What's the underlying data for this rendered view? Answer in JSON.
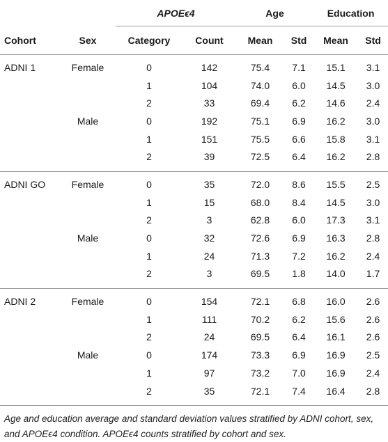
{
  "header": {
    "cohort": "Cohort",
    "sex": "Sex",
    "apoe_group": "APOEϵ4",
    "age_group": "Age",
    "education_group": "Education",
    "category": "Category",
    "count": "Count",
    "age_mean": "Mean",
    "age_std": "Std",
    "edu_mean": "Mean",
    "edu_std": "Std"
  },
  "rows": [
    {
      "cohort": "ADNI 1",
      "sex": "Female",
      "cat": "0",
      "count": "142",
      "age_mean": "75.4",
      "age_std": "7.1",
      "edu_mean": "15.1",
      "edu_std": "3.1"
    },
    {
      "cohort": "",
      "sex": "",
      "cat": "1",
      "count": "104",
      "age_mean": "74.0",
      "age_std": "6.0",
      "edu_mean": "14.5",
      "edu_std": "3.0"
    },
    {
      "cohort": "",
      "sex": "",
      "cat": "2",
      "count": "33",
      "age_mean": "69.4",
      "age_std": "6.2",
      "edu_mean": "14.6",
      "edu_std": "2.4"
    },
    {
      "cohort": "",
      "sex": "Male",
      "cat": "0",
      "count": "192",
      "age_mean": "75.1",
      "age_std": "6.9",
      "edu_mean": "16.2",
      "edu_std": "3.0"
    },
    {
      "cohort": "",
      "sex": "",
      "cat": "1",
      "count": "151",
      "age_mean": "75.5",
      "age_std": "6.6",
      "edu_mean": "15.8",
      "edu_std": "3.1"
    },
    {
      "cohort": "",
      "sex": "",
      "cat": "2",
      "count": "39",
      "age_mean": "72.5",
      "age_std": "6.4",
      "edu_mean": "16.2",
      "edu_std": "2.8"
    },
    {
      "cohort": "ADNI GO",
      "sex": "Female",
      "cat": "0",
      "count": "35",
      "age_mean": "72.0",
      "age_std": "8.6",
      "edu_mean": "15.5",
      "edu_std": "2.5"
    },
    {
      "cohort": "",
      "sex": "",
      "cat": "1",
      "count": "15",
      "age_mean": "68.0",
      "age_std": "8.4",
      "edu_mean": "14.5",
      "edu_std": "3.0"
    },
    {
      "cohort": "",
      "sex": "",
      "cat": "2",
      "count": "3",
      "age_mean": "62.8",
      "age_std": "6.0",
      "edu_mean": "17.3",
      "edu_std": "3.1"
    },
    {
      "cohort": "",
      "sex": "Male",
      "cat": "0",
      "count": "32",
      "age_mean": "72.6",
      "age_std": "6.9",
      "edu_mean": "16.3",
      "edu_std": "2.8"
    },
    {
      "cohort": "",
      "sex": "",
      "cat": "1",
      "count": "24",
      "age_mean": "71.3",
      "age_std": "7.2",
      "edu_mean": "16.2",
      "edu_std": "2.4"
    },
    {
      "cohort": "",
      "sex": "",
      "cat": "2",
      "count": "3",
      "age_mean": "69.5",
      "age_std": "1.8",
      "edu_mean": "14.0",
      "edu_std": "1.7"
    },
    {
      "cohort": "ADNI 2",
      "sex": "Female",
      "cat": "0",
      "count": "154",
      "age_mean": "72.1",
      "age_std": "6.8",
      "edu_mean": "16.0",
      "edu_std": "2.6"
    },
    {
      "cohort": "",
      "sex": "",
      "cat": "1",
      "count": "111",
      "age_mean": "70.2",
      "age_std": "6.2",
      "edu_mean": "15.6",
      "edu_std": "2.6"
    },
    {
      "cohort": "",
      "sex": "",
      "cat": "2",
      "count": "24",
      "age_mean": "69.5",
      "age_std": "6.4",
      "edu_mean": "16.1",
      "edu_std": "2.6"
    },
    {
      "cohort": "",
      "sex": "Male",
      "cat": "0",
      "count": "174",
      "age_mean": "73.3",
      "age_std": "6.9",
      "edu_mean": "16.9",
      "edu_std": "2.5"
    },
    {
      "cohort": "",
      "sex": "",
      "cat": "1",
      "count": "97",
      "age_mean": "73.2",
      "age_std": "7.0",
      "edu_mean": "16.9",
      "edu_std": "2.4"
    },
    {
      "cohort": "",
      "sex": "",
      "cat": "2",
      "count": "35",
      "age_mean": "72.1",
      "age_std": "7.4",
      "edu_mean": "16.4",
      "edu_std": "2.8"
    }
  ],
  "caption": {
    "line1": "Age and education average and standard deviation values stratified by ADNI cohort, sex,",
    "line2": "and APOEϵ4 condition. APOEϵ4 counts stratified by cohort and sex."
  }
}
